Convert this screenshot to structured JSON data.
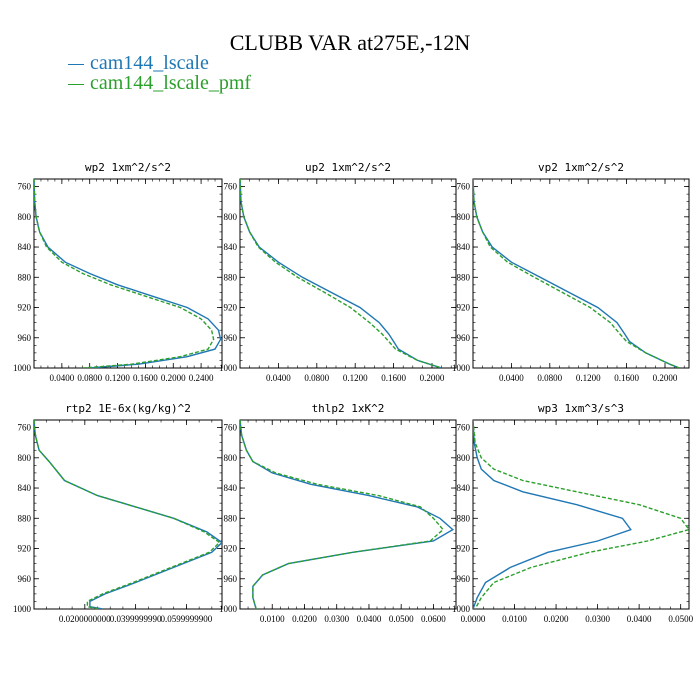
{
  "title": "CLUBB VAR at275E,-12N",
  "legend": [
    {
      "label": "cam144_lscale",
      "color": "#1f77b4"
    },
    {
      "label": "cam144_lscale_pmf",
      "color": "#2ca02c"
    }
  ],
  "chart_data": [
    {
      "type": "line",
      "title": "wp2  1xm^2/s^2",
      "xlim": [
        0,
        0.27
      ],
      "ylim": [
        750,
        1000
      ],
      "y_inverted": true,
      "xticks": [
        0.04,
        0.08,
        0.12,
        0.16,
        0.2,
        0.24
      ],
      "xtick_labels": [
        "0.0400",
        "0.0800",
        "0.1200",
        "0.1600",
        "0.2000",
        "0.2400"
      ],
      "yticks": [
        760,
        800,
        840,
        880,
        920,
        960,
        1000
      ],
      "ytick_labels": [
        "760",
        "800",
        "840",
        "880",
        "920",
        "960",
        "1000"
      ],
      "series": [
        {
          "color": "#1f77b4",
          "dash": "none",
          "x": [
            0,
            0.001,
            0.003,
            0.008,
            0.02,
            0.045,
            0.08,
            0.12,
            0.17,
            0.22,
            0.25,
            0.265,
            0.268,
            0.26,
            0.22,
            0.15,
            0.08
          ],
          "y": [
            750,
            780,
            800,
            820,
            840,
            860,
            875,
            890,
            905,
            920,
            935,
            950,
            962,
            975,
            985,
            995,
            1000
          ]
        },
        {
          "color": "#2ca02c",
          "dash": "4,2",
          "x": [
            0,
            0.001,
            0.003,
            0.008,
            0.018,
            0.04,
            0.07,
            0.11,
            0.16,
            0.21,
            0.24,
            0.255,
            0.258,
            0.25,
            0.21,
            0.14,
            0.07
          ],
          "y": [
            750,
            780,
            800,
            820,
            840,
            860,
            875,
            890,
            905,
            920,
            935,
            950,
            962,
            975,
            985,
            995,
            1000
          ]
        }
      ]
    },
    {
      "type": "line",
      "title": "up2  1xm^2/s^2",
      "xlim": [
        0,
        0.225
      ],
      "ylim": [
        750,
        1000
      ],
      "y_inverted": true,
      "xticks": [
        0.04,
        0.08,
        0.12,
        0.16,
        0.2
      ],
      "xtick_labels": [
        "0.0400",
        "0.0800",
        "0.1200",
        "0.1600",
        "0.2000"
      ],
      "yticks": [
        760,
        800,
        840,
        880,
        920,
        960,
        1000
      ],
      "ytick_labels": [
        "760",
        "800",
        "840",
        "880",
        "920",
        "960",
        "1000"
      ],
      "series": [
        {
          "color": "#1f77b4",
          "dash": "none",
          "x": [
            0,
            0.001,
            0.004,
            0.01,
            0.02,
            0.04,
            0.065,
            0.095,
            0.125,
            0.145,
            0.155,
            0.16,
            0.165,
            0.185,
            0.21
          ],
          "y": [
            750,
            780,
            800,
            820,
            840,
            860,
            880,
            900,
            920,
            940,
            955,
            965,
            975,
            990,
            1000
          ]
        },
        {
          "color": "#2ca02c",
          "dash": "4,2",
          "x": [
            0,
            0.001,
            0.004,
            0.01,
            0.019,
            0.037,
            0.06,
            0.088,
            0.115,
            0.135,
            0.148,
            0.155,
            0.162,
            0.185,
            0.21
          ],
          "y": [
            750,
            780,
            800,
            820,
            840,
            860,
            880,
            900,
            920,
            940,
            955,
            965,
            975,
            990,
            1000
          ]
        }
      ]
    },
    {
      "type": "line",
      "title": "vp2  1xm^2/s^2",
      "xlim": [
        0,
        0.225
      ],
      "ylim": [
        750,
        1000
      ],
      "y_inverted": true,
      "xticks": [
        0.04,
        0.08,
        0.12,
        0.16,
        0.2
      ],
      "xtick_labels": [
        "0.0400",
        "0.0800",
        "0.1200",
        "0.1600",
        "0.2000"
      ],
      "yticks": [
        760,
        800,
        840,
        880,
        920,
        960,
        1000
      ],
      "ytick_labels": [
        "760",
        "800",
        "840",
        "880",
        "920",
        "960",
        "1000"
      ],
      "series": [
        {
          "color": "#1f77b4",
          "dash": "none",
          "x": [
            0,
            0.001,
            0.004,
            0.01,
            0.02,
            0.04,
            0.07,
            0.1,
            0.13,
            0.15,
            0.158,
            0.163,
            0.18,
            0.205,
            0.215
          ],
          "y": [
            750,
            780,
            800,
            820,
            840,
            860,
            880,
            900,
            920,
            940,
            955,
            965,
            980,
            995,
            1000
          ]
        },
        {
          "color": "#2ca02c",
          "dash": "4,2",
          "x": [
            0,
            0.001,
            0.004,
            0.01,
            0.018,
            0.036,
            0.064,
            0.093,
            0.122,
            0.143,
            0.153,
            0.16,
            0.18,
            0.205,
            0.215
          ],
          "y": [
            750,
            780,
            800,
            820,
            840,
            860,
            880,
            900,
            920,
            940,
            955,
            965,
            980,
            995,
            1000
          ]
        }
      ]
    },
    {
      "type": "line",
      "title": "rtp2  1E-6x(kg/kg)^2",
      "xlim": [
        0,
        0.074
      ],
      "ylim": [
        750,
        1000
      ],
      "y_inverted": true,
      "xticks": [
        0.02,
        0.04,
        0.06
      ],
      "xtick_labels": [
        "0.0200000000",
        "0.0399999990",
        "0.0599999900"
      ],
      "yticks": [
        760,
        800,
        840,
        880,
        920,
        960,
        1000
      ],
      "ytick_labels": [
        "760",
        "800",
        "840",
        "880",
        "920",
        "960",
        "1000"
      ],
      "series": [
        {
          "color": "#1f77b4",
          "dash": "none",
          "x": [
            0,
            0.0005,
            0.002,
            0.006,
            0.012,
            0.025,
            0.04,
            0.055,
            0.068,
            0.074,
            0.07,
            0.055,
            0.04,
            0.028,
            0.022,
            0.022,
            0.027
          ],
          "y": [
            750,
            770,
            790,
            805,
            830,
            850,
            865,
            880,
            898,
            912,
            925,
            945,
            965,
            980,
            990,
            997,
            1000
          ]
        },
        {
          "color": "#2ca02c",
          "dash": "4,2",
          "x": [
            0,
            0.0005,
            0.002,
            0.006,
            0.012,
            0.025,
            0.04,
            0.055,
            0.067,
            0.073,
            0.069,
            0.054,
            0.039,
            0.027,
            0.021,
            0.021,
            0.026
          ],
          "y": [
            750,
            770,
            790,
            805,
            830,
            850,
            865,
            880,
            898,
            912,
            925,
            945,
            965,
            980,
            990,
            997,
            1000
          ]
        }
      ]
    },
    {
      "type": "line",
      "title": "thlp2  1xK^2",
      "xlim": [
        0,
        0.067
      ],
      "ylim": [
        750,
        1000
      ],
      "y_inverted": true,
      "xticks": [
        0.01,
        0.02,
        0.03,
        0.04,
        0.05,
        0.06
      ],
      "xtick_labels": [
        "0.0100",
        "0.0200",
        "0.0300",
        "0.0400",
        "0.0500",
        "0.0600"
      ],
      "yticks": [
        760,
        800,
        840,
        880,
        920,
        960,
        1000
      ],
      "ytick_labels": [
        "760",
        "800",
        "840",
        "880",
        "920",
        "960",
        "1000"
      ],
      "series": [
        {
          "color": "#1f77b4",
          "dash": "none",
          "x": [
            0,
            0.0005,
            0.002,
            0.004,
            0.01,
            0.022,
            0.04,
            0.055,
            0.062,
            0.066,
            0.06,
            0.035,
            0.015,
            0.007,
            0.004,
            0.004,
            0.005
          ],
          "y": [
            750,
            770,
            790,
            805,
            820,
            835,
            850,
            865,
            880,
            895,
            910,
            925,
            940,
            955,
            970,
            985,
            1000
          ]
        },
        {
          "color": "#2ca02c",
          "dash": "4,2",
          "x": [
            0,
            0.0005,
            0.002,
            0.004,
            0.011,
            0.024,
            0.043,
            0.056,
            0.06,
            0.063,
            0.059,
            0.035,
            0.015,
            0.007,
            0.004,
            0.004,
            0.005
          ],
          "y": [
            750,
            770,
            790,
            805,
            820,
            835,
            850,
            865,
            880,
            895,
            910,
            925,
            940,
            955,
            970,
            985,
            1000
          ]
        }
      ]
    },
    {
      "type": "line",
      "title": "wp3  1xm^3/s^3",
      "xlim": [
        0,
        0.052
      ],
      "ylim": [
        750,
        1000
      ],
      "y_inverted": true,
      "xticks": [
        0,
        0.01,
        0.02,
        0.03,
        0.04,
        0.05
      ],
      "xtick_labels": [
        "0.0000",
        "0.0100",
        "0.0200",
        "0.0300",
        "0.0400",
        "0.0500"
      ],
      "yticks": [
        760,
        800,
        840,
        880,
        920,
        960,
        1000
      ],
      "ytick_labels": [
        "760",
        "800",
        "840",
        "880",
        "920",
        "960",
        "1000"
      ],
      "series": [
        {
          "color": "#1f77b4",
          "dash": "none",
          "x": [
            0,
            0.0003,
            0.001,
            0.002,
            0.005,
            0.012,
            0.025,
            0.036,
            0.038,
            0.03,
            0.018,
            0.009,
            0.003,
            0.001,
            0
          ],
          "y": [
            750,
            780,
            800,
            815,
            830,
            845,
            862,
            880,
            895,
            910,
            925,
            945,
            965,
            985,
            1000
          ]
        },
        {
          "color": "#2ca02c",
          "dash": "4,2",
          "x": [
            0,
            0.0005,
            0.002,
            0.005,
            0.012,
            0.025,
            0.04,
            0.05,
            0.052,
            0.042,
            0.028,
            0.014,
            0.005,
            0.002,
            0.0005
          ],
          "y": [
            750,
            780,
            800,
            815,
            830,
            845,
            862,
            880,
            895,
            910,
            925,
            945,
            965,
            985,
            1000
          ]
        }
      ]
    }
  ]
}
